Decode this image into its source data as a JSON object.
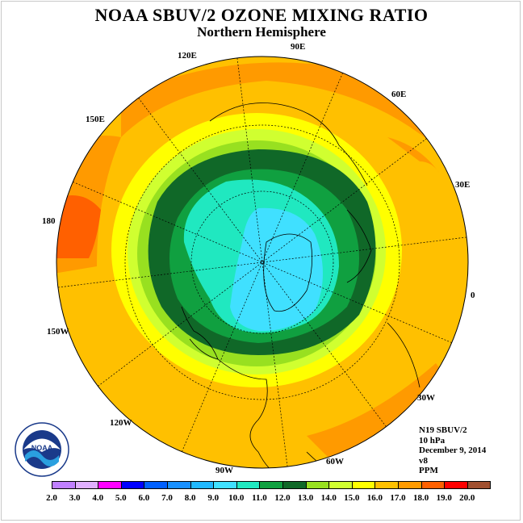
{
  "title": "NOAA SBUV/2 OZONE MIXING RATIO",
  "subtitle": "Northern Hemisphere",
  "longitude_labels": [
    {
      "id": "lon-90e",
      "text": "90E"
    },
    {
      "id": "lon-120e",
      "text": "120E"
    },
    {
      "id": "lon-60e",
      "text": "60E"
    },
    {
      "id": "lon-150e",
      "text": "150E"
    },
    {
      "id": "lon-30e",
      "text": "30E"
    },
    {
      "id": "lon-180",
      "text": "180"
    },
    {
      "id": "lon-0",
      "text": "0"
    },
    {
      "id": "lon-150w",
      "text": "150W"
    },
    {
      "id": "lon-30w",
      "text": "30W"
    },
    {
      "id": "lon-120w",
      "text": "120W"
    },
    {
      "id": "lon-60w",
      "text": "60W"
    },
    {
      "id": "lon-90w",
      "text": "90W"
    }
  ],
  "info": {
    "satellite": "N19 SBUV/2",
    "level": "10 hPa",
    "date": "December 9, 2014",
    "version": "v8",
    "units": "PPM"
  },
  "logo_text": "NOAA",
  "colorbar": {
    "labels": [
      "2.0",
      "3.0",
      "4.0",
      "5.0",
      "6.0",
      "7.0",
      "8.0",
      "9.0",
      "10.0",
      "11.0",
      "12.0",
      "13.0",
      "14.0",
      "15.0",
      "16.0",
      "17.0",
      "18.0",
      "19.0",
      "20.0"
    ],
    "colors": [
      "#c080ff",
      "#e0b0ff",
      "#ff00ff",
      "#0000ff",
      "#0060ff",
      "#1890ff",
      "#20b8ff",
      "#40e0ff",
      "#20e8c0",
      "#10a040",
      "#106828",
      "#98e020",
      "#d0ff30",
      "#ffff00",
      "#ffc000",
      "#ff9a00",
      "#ff6000",
      "#ff0000",
      "#a05030"
    ]
  },
  "map_colors": {
    "c12": "#106828",
    "c11": "#10a040",
    "c10": "#20e8c0",
    "c9": "#40e0ff",
    "c13": "#98e020",
    "c14": "#d0ff30",
    "c15": "#ffff00",
    "c16": "#ffc000",
    "c17": "#ff9a00",
    "c18": "#ff6000"
  }
}
